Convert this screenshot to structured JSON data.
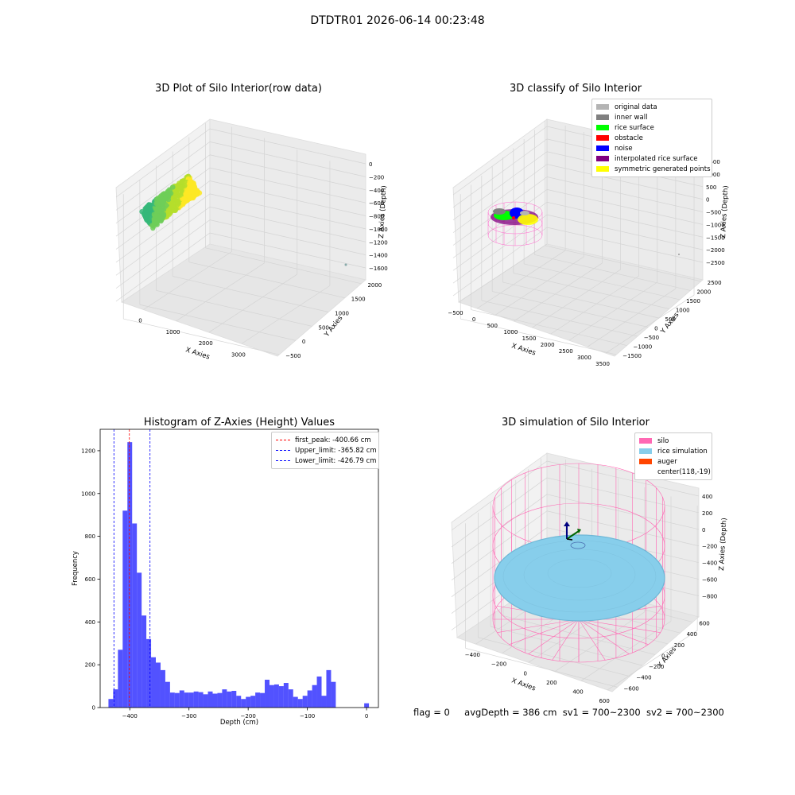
{
  "figure": {
    "suptitle": "DTDTR01 2026-06-14 00:23:48"
  },
  "panels": {
    "raw": {
      "title": "3D Plot of Silo Interior(row data)",
      "xlabel": "X Axies",
      "ylabel": "Y Axies",
      "zlabel": "Z Axies (Depth)",
      "xticks": [
        "0",
        "1000",
        "2000",
        "3000"
      ],
      "yticks": [
        "−500",
        "0",
        "500",
        "1000",
        "1500",
        "2000"
      ],
      "zticks": [
        "0",
        "−200",
        "−400",
        "−600",
        "−800",
        "−1000",
        "−1200",
        "−1400",
        "−1600"
      ],
      "colormap": [
        "#35b779",
        "#6ece58",
        "#b5de2b",
        "#fde725"
      ]
    },
    "classify": {
      "title": "3D classify of Silo Interior",
      "xlabel": "X Axies",
      "ylabel": "Y Axies",
      "zlabel": "Z Axies (Depth)",
      "xticks": [
        "−500",
        "0",
        "500",
        "1000",
        "1500",
        "2000",
        "2500",
        "3000",
        "3500"
      ],
      "yticks": [
        "−1500",
        "−1000",
        "−500",
        "0",
        "500",
        "1000",
        "1500",
        "2000",
        "2500"
      ],
      "zticks": [
        "1500",
        "1000",
        "500",
        "0",
        "−500",
        "−1000",
        "−1500",
        "−2000",
        "−2500"
      ],
      "legend": [
        {
          "label": "original data",
          "color": "#b4b4b4"
        },
        {
          "label": "inner wall",
          "color": "#808080"
        },
        {
          "label": "rice surface",
          "color": "#00ff00"
        },
        {
          "label": "obstacle",
          "color": "#ff0000"
        },
        {
          "label": "noise",
          "color": "#0000ff"
        },
        {
          "label": "interpolated rice surface",
          "color": "#800080"
        },
        {
          "label": "symmetric generated points",
          "color": "#ffff00"
        }
      ]
    },
    "simulation": {
      "title": "3D simulation of Silo Interior",
      "xlabel": "X Axies",
      "ylabel": "Y Axies",
      "zlabel": "Z Axies (Depth)",
      "xticks": [
        "−400",
        "−200",
        "0",
        "200",
        "400",
        "600"
      ],
      "yticks": [
        "−600",
        "−400",
        "−200",
        "0",
        "200",
        "400",
        "600"
      ],
      "zticks": [
        "400",
        "200",
        "0",
        "−200",
        "−400",
        "−600",
        "−800"
      ],
      "legend": [
        {
          "label": "silo",
          "color": "#ff69b4"
        },
        {
          "label": "rice simulation",
          "color": "#87ceeb"
        },
        {
          "label": "auger",
          "color": "#ff4500"
        },
        {
          "label": "center(118,-19)",
          "color": ""
        }
      ]
    }
  },
  "footer": {
    "flag": "flag = 0",
    "avg": "avgDepth = 386 cm",
    "sv1": "sv1 = 700~2300",
    "sv2": "sv2 = 700~2300"
  },
  "chart_data": {
    "type": "bar",
    "title": "Histogram of Z-Axies (Height) Values",
    "xlabel": "Depth (cm)",
    "ylabel": "Frequency",
    "xlim": [
      -450,
      20
    ],
    "ylim": [
      0,
      1300
    ],
    "xticks": [
      -400,
      -300,
      -200,
      -100,
      0
    ],
    "yticks": [
      0,
      200,
      400,
      600,
      800,
      1000,
      1200
    ],
    "bar_color": "#0000ff",
    "bin_width": 8,
    "bins_start": [
      -436,
      -428,
      -420,
      -412,
      -404,
      -396,
      -388,
      -380,
      -372,
      -364,
      -356,
      -348,
      -340,
      -332,
      -324,
      -316,
      -308,
      -300,
      -292,
      -284,
      -276,
      -268,
      -260,
      -252,
      -244,
      -236,
      -228,
      -220,
      -212,
      -204,
      -196,
      -188,
      -180,
      -172,
      -164,
      -156,
      -148,
      -140,
      -132,
      -124,
      -116,
      -108,
      -100,
      -92,
      -84,
      -76,
      -68,
      -60,
      -52,
      -44,
      -36,
      -28,
      -20,
      -12,
      -4
    ],
    "values": [
      40,
      85,
      270,
      920,
      1240,
      860,
      630,
      430,
      320,
      235,
      210,
      175,
      120,
      70,
      68,
      80,
      70,
      70,
      75,
      72,
      62,
      75,
      65,
      68,
      85,
      75,
      78,
      55,
      40,
      50,
      55,
      70,
      68,
      130,
      105,
      108,
      100,
      115,
      85,
      50,
      40,
      55,
      80,
      105,
      145,
      55,
      175,
      120,
      0,
      0,
      0,
      0,
      0,
      0,
      20
    ],
    "vlines": [
      {
        "label": "first_peak: -400.66 cm",
        "x": -400.66,
        "color": "#ff0000"
      },
      {
        "label": "Upper_limit: -365.82 cm",
        "x": -365.82,
        "color": "#0000ff"
      },
      {
        "label": "Lower_limit: -426.79 cm",
        "x": -426.79,
        "color": "#0000ff"
      }
    ],
    "legend_position": "top-right"
  }
}
